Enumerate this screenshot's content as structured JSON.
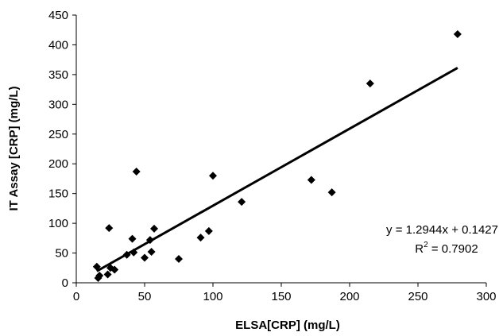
{
  "chart_data": {
    "type": "scatter",
    "title": "",
    "xlabel": "ELSA[CRP] (mg/L)",
    "ylabel": "IT Assay [CRP] (mg/L)",
    "xlim": [
      0,
      300
    ],
    "ylim": [
      0,
      450
    ],
    "x_ticks": [
      "0",
      "50",
      "100",
      "150",
      "200",
      "250",
      "300"
    ],
    "y_ticks": [
      "0",
      "50",
      "100",
      "150",
      "200",
      "250",
      "300",
      "350",
      "400",
      "450"
    ],
    "grid": false,
    "legend": "none",
    "marker": "diamond",
    "marker_color": "#000000",
    "series": [
      {
        "points": [
          {
            "x": 15,
            "y": 27
          },
          {
            "x": 16,
            "y": 8
          },
          {
            "x": 17,
            "y": 12
          },
          {
            "x": 23,
            "y": 14
          },
          {
            "x": 24,
            "y": 92
          },
          {
            "x": 25,
            "y": 25
          },
          {
            "x": 28,
            "y": 22
          },
          {
            "x": 37,
            "y": 47
          },
          {
            "x": 41,
            "y": 74
          },
          {
            "x": 42,
            "y": 51
          },
          {
            "x": 44,
            "y": 187
          },
          {
            "x": 50,
            "y": 42
          },
          {
            "x": 54,
            "y": 72
          },
          {
            "x": 55,
            "y": 52
          },
          {
            "x": 57,
            "y": 91
          },
          {
            "x": 75,
            "y": 40
          },
          {
            "x": 91,
            "y": 76
          },
          {
            "x": 97,
            "y": 87
          },
          {
            "x": 100,
            "y": 180
          },
          {
            "x": 121,
            "y": 136
          },
          {
            "x": 172,
            "y": 173
          },
          {
            "x": 187,
            "y": 152
          },
          {
            "x": 215,
            "y": 335
          },
          {
            "x": 279,
            "y": 418
          }
        ]
      }
    ],
    "trendline": {
      "slope": 1.2944,
      "intercept": 0.1427,
      "x_range": [
        15,
        279
      ],
      "equation_label": "y = 1.2944x + 0.1427",
      "r2_prefix": "R",
      "r2_exponent": "2",
      "r2_suffix": " = 0.7902"
    }
  }
}
